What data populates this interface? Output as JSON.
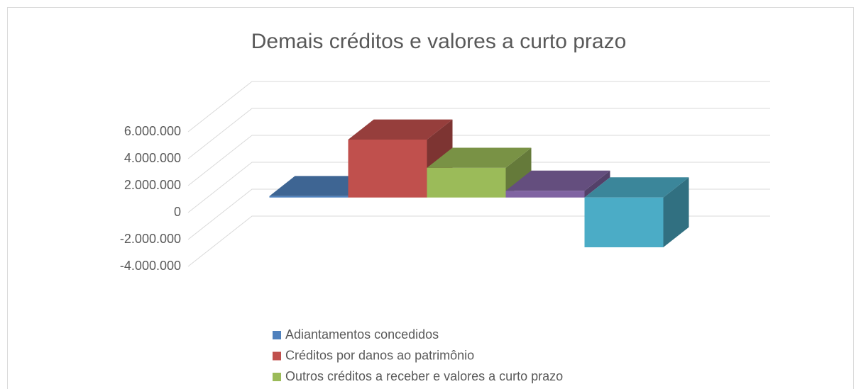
{
  "chart_data": {
    "type": "bar3d",
    "title": "Demais créditos e valores a curto prazo",
    "series": [
      {
        "name": "Adiantamentos concedidos",
        "color": "#4f81bd",
        "values": [
          100000
        ]
      },
      {
        "name": "Créditos por danos ao patrimônio",
        "color": "#c0504d",
        "values": [
          4300000
        ]
      },
      {
        "name": "Outros créditos a receber e valores a curto prazo",
        "color": "#9bbb59",
        "values": [
          2200000
        ]
      },
      {
        "color": "#8064a2",
        "values": [
          500000
        ]
      },
      {
        "color": "#4bacc6",
        "values": [
          -3700000
        ]
      }
    ],
    "ylim": [
      -4000000,
      6000000
    ],
    "yticks": [
      {
        "value": -4000000,
        "label": "-4.000.000"
      },
      {
        "value": -2000000,
        "label": "-2.000.000"
      },
      {
        "value": 0,
        "label": "0"
      },
      {
        "value": 2000000,
        "label": "2.000.000"
      },
      {
        "value": 4000000,
        "label": "4.000.000"
      },
      {
        "value": 6000000,
        "label": "6.000.000"
      }
    ],
    "grid": true,
    "legend": "bottom"
  }
}
